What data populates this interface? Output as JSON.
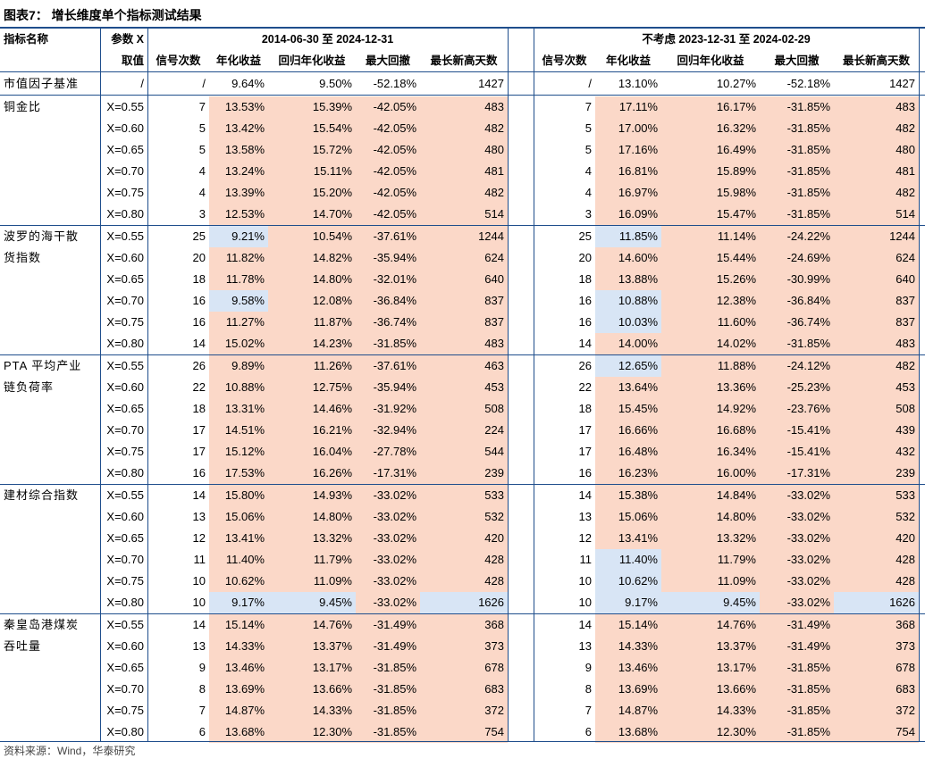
{
  "title": "图表7：  增长维度单个指标测试结果",
  "header": {
    "col_name": "指标名称",
    "param_top": "参数 X",
    "param_bottom": "取值",
    "period1": "2014-06-30 至 2024-12-31",
    "period2": "不考虑 2023-12-31 至 2024-02-29",
    "sub": [
      "信号次数",
      "年化收益",
      "回归年化收益",
      "最大回撤",
      "最长新高天数"
    ]
  },
  "baseline": {
    "name": "市值因子基准",
    "param": "/",
    "p1": [
      "/",
      "9.64%",
      "9.50%",
      "-52.18%",
      "1427"
    ],
    "p2": [
      "/",
      "13.10%",
      "10.27%",
      "-52.18%",
      "1427"
    ]
  },
  "groups": [
    {
      "name": "铜金比",
      "rows": [
        {
          "x": "X=0.55",
          "p1": [
            "7",
            "13.53%",
            "15.39%",
            "-42.05%",
            "483"
          ],
          "p2": [
            "7",
            "17.11%",
            "16.17%",
            "-31.85%",
            "483"
          ],
          "blue1": [],
          "blue2": []
        },
        {
          "x": "X=0.60",
          "p1": [
            "5",
            "13.42%",
            "15.54%",
            "-42.05%",
            "482"
          ],
          "p2": [
            "5",
            "17.00%",
            "16.32%",
            "-31.85%",
            "482"
          ],
          "blue1": [],
          "blue2": []
        },
        {
          "x": "X=0.65",
          "p1": [
            "5",
            "13.58%",
            "15.72%",
            "-42.05%",
            "480"
          ],
          "p2": [
            "5",
            "17.16%",
            "16.49%",
            "-31.85%",
            "480"
          ],
          "blue1": [],
          "blue2": []
        },
        {
          "x": "X=0.70",
          "p1": [
            "4",
            "13.24%",
            "15.11%",
            "-42.05%",
            "481"
          ],
          "p2": [
            "4",
            "16.81%",
            "15.89%",
            "-31.85%",
            "481"
          ],
          "blue1": [],
          "blue2": []
        },
        {
          "x": "X=0.75",
          "p1": [
            "4",
            "13.39%",
            "15.20%",
            "-42.05%",
            "482"
          ],
          "p2": [
            "4",
            "16.97%",
            "15.98%",
            "-31.85%",
            "482"
          ],
          "blue1": [],
          "blue2": []
        },
        {
          "x": "X=0.80",
          "p1": [
            "3",
            "12.53%",
            "14.70%",
            "-42.05%",
            "514"
          ],
          "p2": [
            "3",
            "16.09%",
            "15.47%",
            "-31.85%",
            "514"
          ],
          "blue1": [],
          "blue2": []
        }
      ]
    },
    {
      "name": "波罗的海干散货指数",
      "rows": [
        {
          "x": "X=0.55",
          "p1": [
            "25",
            "9.21%",
            "10.54%",
            "-37.61%",
            "1244"
          ],
          "p2": [
            "25",
            "11.85%",
            "11.14%",
            "-24.22%",
            "1244"
          ],
          "blue1": [
            1
          ],
          "blue2": [
            1
          ]
        },
        {
          "x": "X=0.60",
          "p1": [
            "20",
            "11.82%",
            "14.82%",
            "-35.94%",
            "624"
          ],
          "p2": [
            "20",
            "14.60%",
            "15.44%",
            "-24.69%",
            "624"
          ],
          "blue1": [],
          "blue2": []
        },
        {
          "x": "X=0.65",
          "p1": [
            "18",
            "11.78%",
            "14.80%",
            "-32.01%",
            "640"
          ],
          "p2": [
            "18",
            "13.88%",
            "15.26%",
            "-30.99%",
            "640"
          ],
          "blue1": [],
          "blue2": []
        },
        {
          "x": "X=0.70",
          "p1": [
            "16",
            "9.58%",
            "12.08%",
            "-36.84%",
            "837"
          ],
          "p2": [
            "16",
            "10.88%",
            "12.38%",
            "-36.84%",
            "837"
          ],
          "blue1": [
            1
          ],
          "blue2": [
            1
          ]
        },
        {
          "x": "X=0.75",
          "p1": [
            "16",
            "11.27%",
            "11.87%",
            "-36.74%",
            "837"
          ],
          "p2": [
            "16",
            "10.03%",
            "11.60%",
            "-36.74%",
            "837"
          ],
          "blue1": [],
          "blue2": [
            1
          ]
        },
        {
          "x": "X=0.80",
          "p1": [
            "14",
            "15.02%",
            "14.23%",
            "-31.85%",
            "483"
          ],
          "p2": [
            "14",
            "14.00%",
            "14.02%",
            "-31.85%",
            "483"
          ],
          "blue1": [],
          "blue2": []
        }
      ]
    },
    {
      "name": "PTA 平均产业链负荷率",
      "rows": [
        {
          "x": "X=0.55",
          "p1": [
            "26",
            "9.89%",
            "11.26%",
            "-37.61%",
            "463"
          ],
          "p2": [
            "26",
            "12.65%",
            "11.88%",
            "-24.12%",
            "482"
          ],
          "blue1": [],
          "blue2": [
            1
          ]
        },
        {
          "x": "X=0.60",
          "p1": [
            "22",
            "10.88%",
            "12.75%",
            "-35.94%",
            "453"
          ],
          "p2": [
            "22",
            "13.64%",
            "13.36%",
            "-25.23%",
            "453"
          ],
          "blue1": [],
          "blue2": []
        },
        {
          "x": "X=0.65",
          "p1": [
            "18",
            "13.31%",
            "14.46%",
            "-31.92%",
            "508"
          ],
          "p2": [
            "18",
            "15.45%",
            "14.92%",
            "-23.76%",
            "508"
          ],
          "blue1": [],
          "blue2": []
        },
        {
          "x": "X=0.70",
          "p1": [
            "17",
            "14.51%",
            "16.21%",
            "-32.94%",
            "224"
          ],
          "p2": [
            "17",
            "16.66%",
            "16.68%",
            "-15.41%",
            "439"
          ],
          "blue1": [],
          "blue2": []
        },
        {
          "x": "X=0.75",
          "p1": [
            "17",
            "15.12%",
            "16.04%",
            "-27.78%",
            "544"
          ],
          "p2": [
            "17",
            "16.48%",
            "16.34%",
            "-15.41%",
            "432"
          ],
          "blue1": [],
          "blue2": []
        },
        {
          "x": "X=0.80",
          "p1": [
            "16",
            "17.53%",
            "16.26%",
            "-17.31%",
            "239"
          ],
          "p2": [
            "16",
            "16.23%",
            "16.00%",
            "-17.31%",
            "239"
          ],
          "blue1": [],
          "blue2": []
        }
      ]
    },
    {
      "name": "建材综合指数",
      "rows": [
        {
          "x": "X=0.55",
          "p1": [
            "14",
            "15.80%",
            "14.93%",
            "-33.02%",
            "533"
          ],
          "p2": [
            "14",
            "15.38%",
            "14.84%",
            "-33.02%",
            "533"
          ],
          "blue1": [],
          "blue2": []
        },
        {
          "x": "X=0.60",
          "p1": [
            "13",
            "15.06%",
            "14.80%",
            "-33.02%",
            "532"
          ],
          "p2": [
            "13",
            "15.06%",
            "14.80%",
            "-33.02%",
            "532"
          ],
          "blue1": [],
          "blue2": []
        },
        {
          "x": "X=0.65",
          "p1": [
            "12",
            "13.41%",
            "13.32%",
            "-33.02%",
            "420"
          ],
          "p2": [
            "12",
            "13.41%",
            "13.32%",
            "-33.02%",
            "420"
          ],
          "blue1": [],
          "blue2": []
        },
        {
          "x": "X=0.70",
          "p1": [
            "11",
            "11.40%",
            "11.79%",
            "-33.02%",
            "428"
          ],
          "p2": [
            "11",
            "11.40%",
            "11.79%",
            "-33.02%",
            "428"
          ],
          "blue1": [],
          "blue2": [
            1
          ]
        },
        {
          "x": "X=0.75",
          "p1": [
            "10",
            "10.62%",
            "11.09%",
            "-33.02%",
            "428"
          ],
          "p2": [
            "10",
            "10.62%",
            "11.09%",
            "-33.02%",
            "428"
          ],
          "blue1": [],
          "blue2": [
            1
          ]
        },
        {
          "x": "X=0.80",
          "p1": [
            "10",
            "9.17%",
            "9.45%",
            "-33.02%",
            "1626"
          ],
          "p2": [
            "10",
            "9.17%",
            "9.45%",
            "-33.02%",
            "1626"
          ],
          "blue1": [
            1,
            2,
            4
          ],
          "blue2": [
            1,
            2,
            4
          ]
        }
      ]
    },
    {
      "name": "秦皇岛港煤炭吞吐量",
      "rows": [
        {
          "x": "X=0.55",
          "p1": [
            "14",
            "15.14%",
            "14.76%",
            "-31.49%",
            "368"
          ],
          "p2": [
            "14",
            "15.14%",
            "14.76%",
            "-31.49%",
            "368"
          ],
          "blue1": [],
          "blue2": []
        },
        {
          "x": "X=0.60",
          "p1": [
            "13",
            "14.33%",
            "13.37%",
            "-31.49%",
            "373"
          ],
          "p2": [
            "13",
            "14.33%",
            "13.37%",
            "-31.49%",
            "373"
          ],
          "blue1": [],
          "blue2": []
        },
        {
          "x": "X=0.65",
          "p1": [
            "9",
            "13.46%",
            "13.17%",
            "-31.85%",
            "678"
          ],
          "p2": [
            "9",
            "13.46%",
            "13.17%",
            "-31.85%",
            "678"
          ],
          "blue1": [],
          "blue2": []
        },
        {
          "x": "X=0.70",
          "p1": [
            "8",
            "13.69%",
            "13.66%",
            "-31.85%",
            "683"
          ],
          "p2": [
            "8",
            "13.69%",
            "13.66%",
            "-31.85%",
            "683"
          ],
          "blue1": [],
          "blue2": []
        },
        {
          "x": "X=0.75",
          "p1": [
            "7",
            "14.87%",
            "14.33%",
            "-31.85%",
            "372"
          ],
          "p2": [
            "7",
            "14.87%",
            "14.33%",
            "-31.85%",
            "372"
          ],
          "blue1": [],
          "blue2": []
        },
        {
          "x": "X=0.80",
          "p1": [
            "6",
            "13.68%",
            "12.30%",
            "-31.85%",
            "754"
          ],
          "p2": [
            "6",
            "13.68%",
            "12.30%",
            "-31.85%",
            "754"
          ],
          "blue1": [],
          "blue2": []
        }
      ]
    }
  ],
  "source": "资料来源：Wind，华泰研究",
  "colors": {
    "pink": "#fbd8c8",
    "blue": "#d8e5f5",
    "rule": "#1f4e8c"
  }
}
